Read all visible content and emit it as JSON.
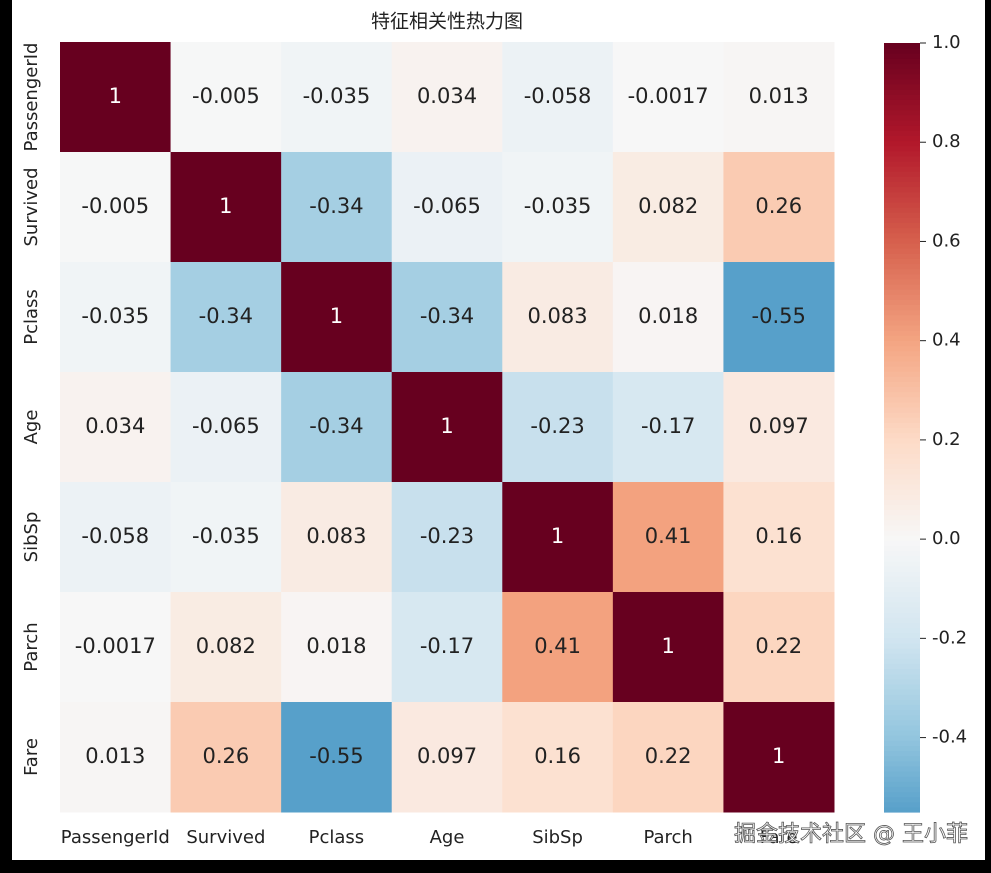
{
  "chart_data": {
    "type": "heatmap",
    "title": "特征相关性热力图",
    "x_categories": [
      "PassengerId",
      "Survived",
      "Pclass",
      "Age",
      "SibSp",
      "Parch",
      "Fare"
    ],
    "y_categories": [
      "PassengerId",
      "Survived",
      "Pclass",
      "Age",
      "SibSp",
      "Parch",
      "Fare"
    ],
    "values": [
      [
        1,
        -0.005,
        -0.035,
        0.034,
        -0.058,
        -0.0017,
        0.013
      ],
      [
        -0.005,
        1,
        -0.34,
        -0.065,
        -0.035,
        0.082,
        0.26
      ],
      [
        -0.035,
        -0.34,
        1,
        -0.34,
        0.083,
        0.018,
        -0.55
      ],
      [
        0.034,
        -0.065,
        -0.34,
        1,
        -0.23,
        -0.17,
        0.097
      ],
      [
        -0.058,
        -0.035,
        0.083,
        -0.23,
        1,
        0.41,
        0.16
      ],
      [
        -0.0017,
        0.082,
        0.018,
        -0.17,
        0.41,
        1,
        0.22
      ],
      [
        0.013,
        0.26,
        -0.55,
        0.097,
        0.16,
        0.22,
        1
      ]
    ],
    "colors": [
      "#053061",
      "#2166ac",
      "#4393c3",
      "#92c5de",
      "#d1e5f0",
      "#f7f7f7",
      "#fddbc7",
      "#f4a582",
      "#d6604d",
      "#b2182b",
      "#67001f"
    ],
    "clim": [
      -0.55,
      1
    ],
    "cticks": [
      {
        "value": 1.0,
        "label": "1.0"
      },
      0.8,
      0.6,
      0.4,
      0.2,
      {
        "value": 0,
        "label": "0.0"
      },
      -0.2,
      -0.4
    ],
    "watermark": "掘金技术社区 @ 王小菲"
  }
}
